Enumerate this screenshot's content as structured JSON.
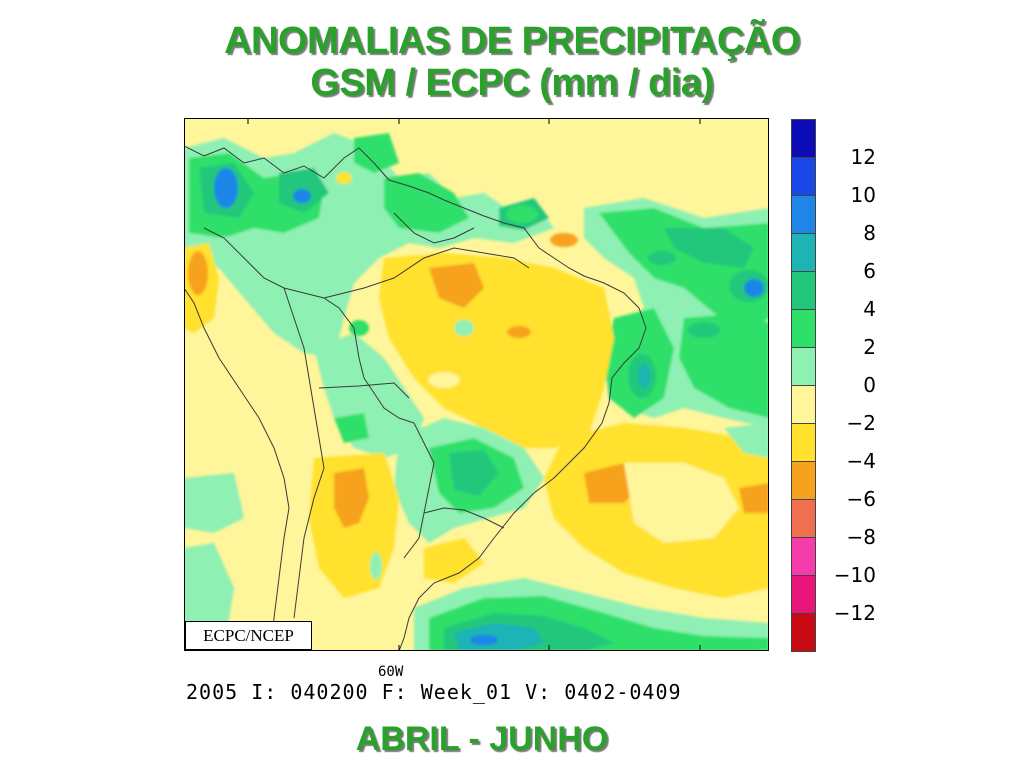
{
  "title_line1": "ANOMALIAS DE PRECIPITAÇÃO",
  "title_line2": "GSM / ECPC (mm / dia)",
  "period": "ABRIL - JUNHO",
  "credit": "ECPC/NCEP",
  "lon_tick_label": "60W",
  "run_info": "2005 I: 040200 F: Week_01 V: 0402-0409",
  "colorbar": {
    "colors": [
      "#0b0bb8",
      "#1a48e6",
      "#1f86e8",
      "#1fb4b4",
      "#22c77c",
      "#2ee06a",
      "#8ff0b4",
      "#fff59a",
      "#ffe12e",
      "#f7a21e",
      "#f06f50",
      "#f53caa",
      "#e8157a",
      "#c80a14"
    ],
    "labels": [
      "12",
      "10",
      "8",
      "6",
      "4",
      "2",
      "0",
      "−2",
      "−4",
      "−6",
      "−8",
      "−10",
      "−12"
    ]
  },
  "palette": {
    "title_green": "#2aa12a",
    "light_yellow": "#fff59a",
    "yellow": "#ffe12e",
    "orange": "#f7a21e",
    "light_green": "#8ff0b4",
    "green": "#2ee06a",
    "mid_green": "#22c77c",
    "teal": "#1fb4b4",
    "blue": "#1f86e8"
  }
}
